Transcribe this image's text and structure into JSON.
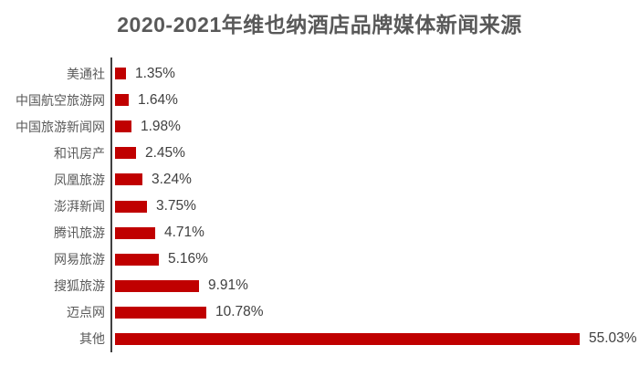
{
  "page": {
    "background": "#ffffff"
  },
  "chart_data": {
    "type": "bar",
    "orientation": "horizontal",
    "title": "2020-2021年维也纳酒店品牌媒体新闻来源",
    "categories": [
      "美通社",
      "中国航空旅游网",
      "中国旅游新闻网",
      "和讯房产",
      "凤凰旅游",
      "澎湃新闻",
      "腾讯旅游",
      "网易旅游",
      "搜狐旅游",
      "迈点网",
      "其他"
    ],
    "values": [
      1.35,
      1.64,
      1.98,
      2.45,
      3.24,
      3.75,
      4.71,
      5.16,
      9.91,
      10.78,
      55.03
    ],
    "value_labels": [
      "1.35%",
      "1.64%",
      "1.98%",
      "2.45%",
      "3.24%",
      "3.75%",
      "4.71%",
      "5.16%",
      "9.91%",
      "10.78%",
      "55.03%"
    ],
    "xlabel": "",
    "ylabel": "",
    "xlim": [
      0,
      60
    ],
    "grid": false,
    "legend": null,
    "bar_color": "#c00000",
    "axis_color": "#404040",
    "title_color": "#595959",
    "category_label_color": "#595959",
    "value_label_color": "#404040"
  }
}
